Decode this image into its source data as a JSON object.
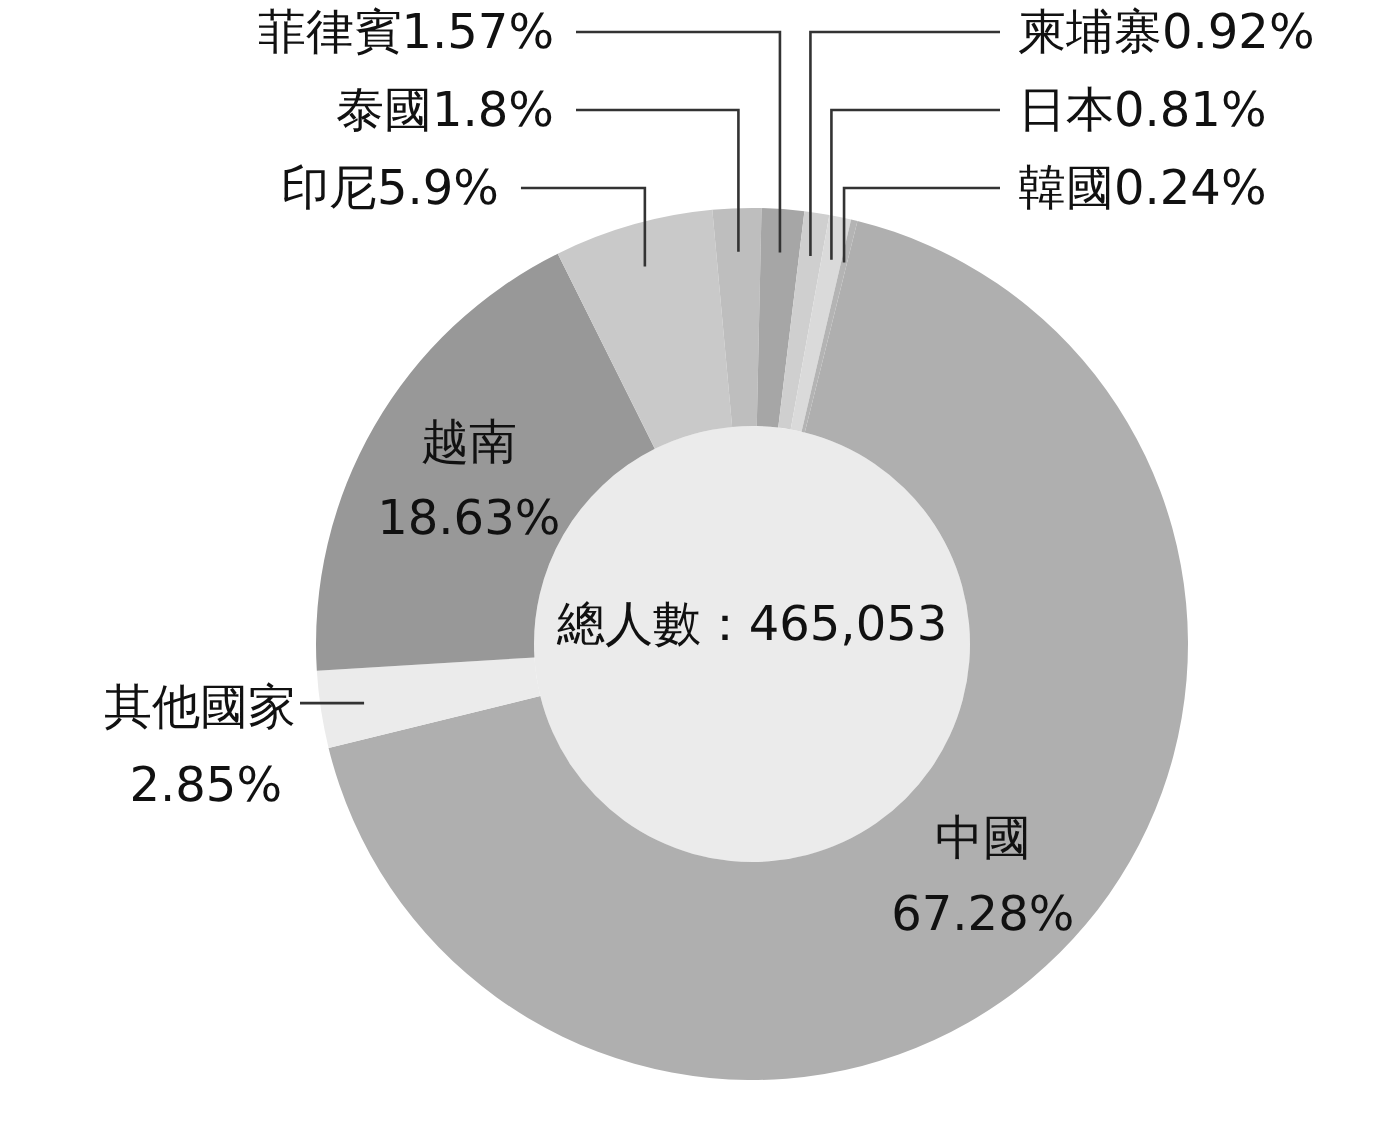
{
  "chart_data": {
    "type": "donut",
    "categories": [
      "中國",
      "其他國家",
      "越南",
      "印尼",
      "泰國",
      "菲律賓",
      "柬埔寨",
      "日本",
      "韓國"
    ],
    "values": [
      67.28,
      2.85,
      18.63,
      5.9,
      1.8,
      1.57,
      0.92,
      0.81,
      0.24
    ],
    "value_labels": [
      "67.28%",
      "2.85%",
      "18.63%",
      "5.9%",
      "1.8%",
      "1.57%",
      "0.92%",
      "0.81%",
      "0.24%"
    ],
    "colors": [
      "#afafaf",
      "#ebebeb",
      "#989898",
      "#c9c9c9",
      "#bebebe",
      "#a6a6a6",
      "#cfcfcf",
      "#dadada",
      "#b4b4b4"
    ],
    "annotations": [
      "總人數：465,053"
    ]
  }
}
